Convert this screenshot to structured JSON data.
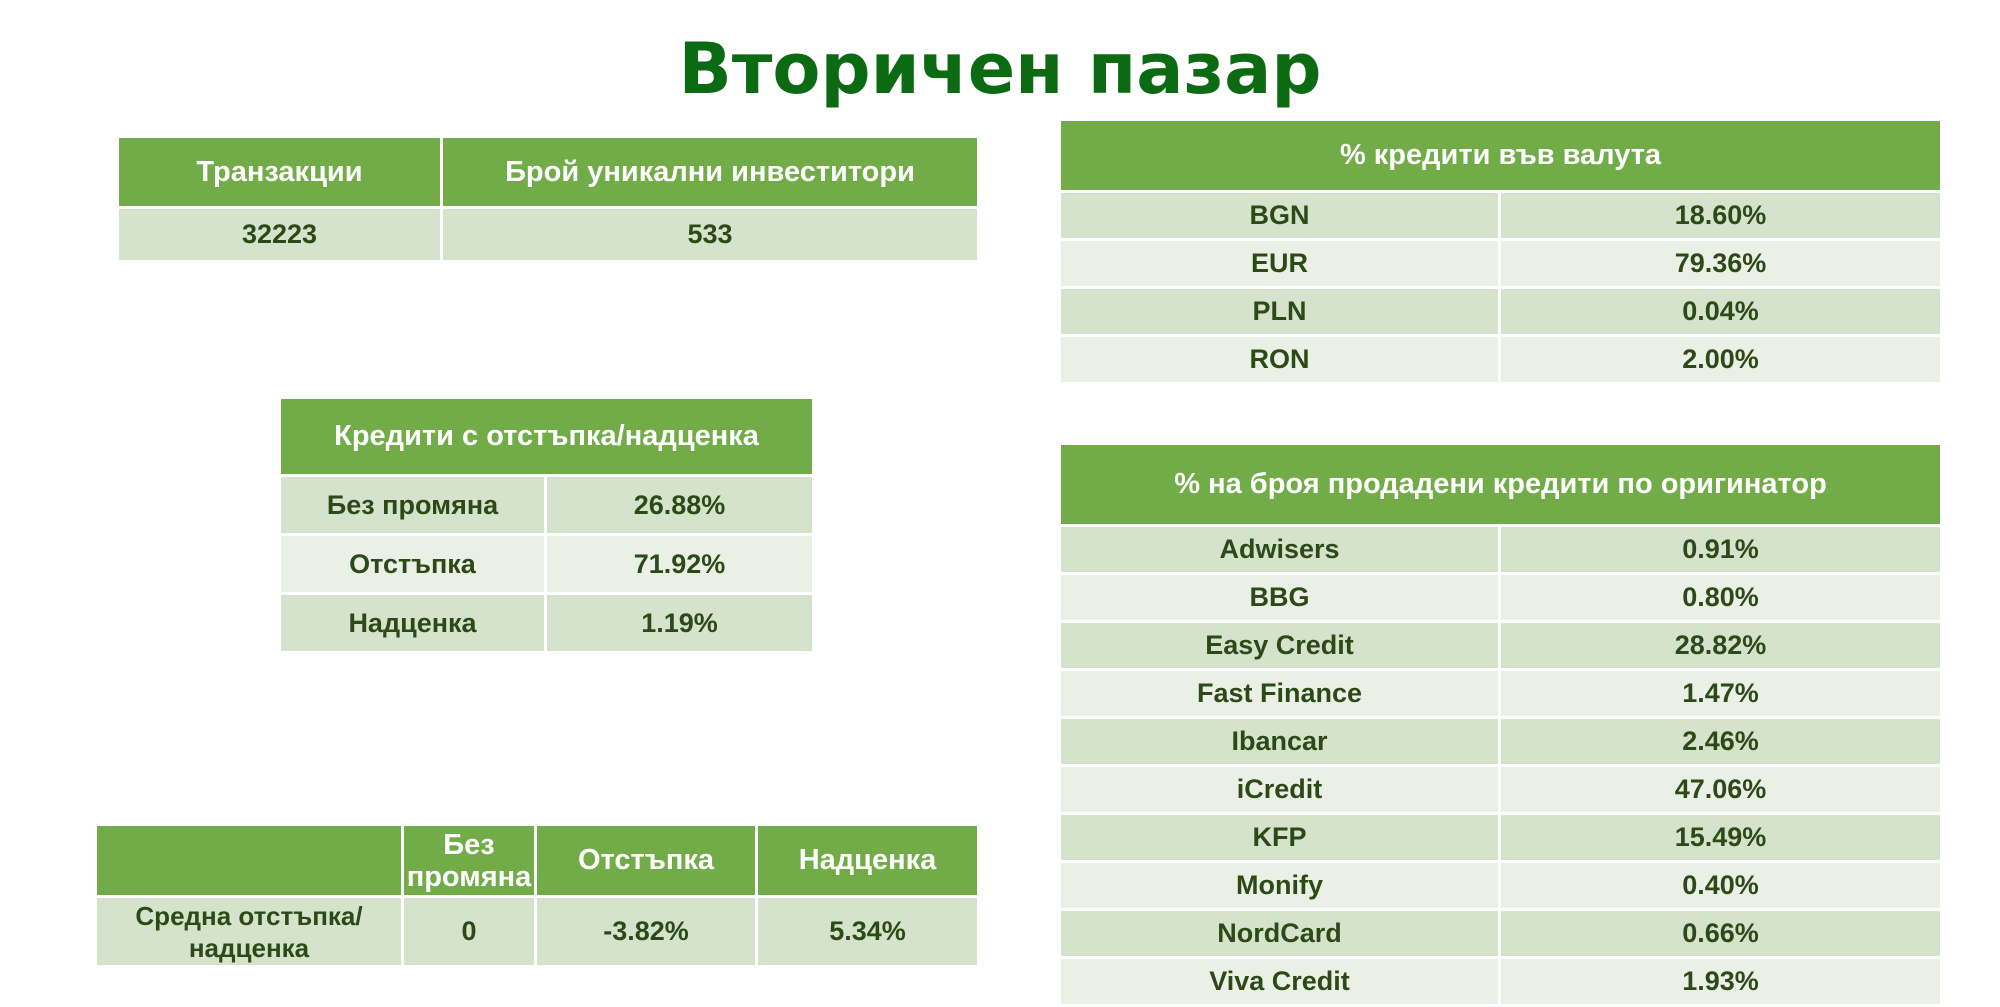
{
  "title": "Вторичен пазар",
  "transactions_table": {
    "headers": [
      "Транзакции",
      "Брой уникални инвеститори"
    ],
    "values": [
      "32223",
      "533"
    ]
  },
  "discount_table": {
    "header": "Кредити с отстъпка/надценка",
    "rows": [
      {
        "label": "Без промяна",
        "value": "26.88%"
      },
      {
        "label": "Отстъпка",
        "value": "71.92%"
      },
      {
        "label": "Надценка",
        "value": "1.19%"
      }
    ]
  },
  "avg_table": {
    "headers": [
      "",
      "Без промяна",
      "Отстъпка",
      "Надценка"
    ],
    "row": {
      "label": "Средна отстъпка/надценка",
      "values": [
        "0",
        "-3.82%",
        "5.34%"
      ]
    }
  },
  "currency_table": {
    "header": "% кредити във валута",
    "rows": [
      {
        "label": "BGN",
        "value": "18.60%"
      },
      {
        "label": "EUR",
        "value": "79.36%"
      },
      {
        "label": "PLN",
        "value": "0.04%"
      },
      {
        "label": "RON",
        "value": "2.00%"
      }
    ]
  },
  "originator_table": {
    "header": "% на броя продадени кредити по оригинатор",
    "rows": [
      {
        "label": "Adwisers",
        "value": "0.91%"
      },
      {
        "label": "BBG",
        "value": "0.80%"
      },
      {
        "label": "Easy Credit",
        "value": "28.82%"
      },
      {
        "label": "Fast Finance",
        "value": "1.47%"
      },
      {
        "label": "Ibancar",
        "value": "2.46%"
      },
      {
        "label": "iCredit",
        "value": "47.06%"
      },
      {
        "label": "KFP",
        "value": "15.49%"
      },
      {
        "label": "Monify",
        "value": "0.40%"
      },
      {
        "label": "NordCard",
        "value": "0.66%"
      },
      {
        "label": "Viva Credit",
        "value": "1.93%"
      }
    ]
  },
  "colors": {
    "title": "#0b6a12",
    "header_bg": "#71ac48",
    "row_dark": "#d6e3cc",
    "row_light": "#ebf0e6",
    "text": "#2c4a17"
  }
}
